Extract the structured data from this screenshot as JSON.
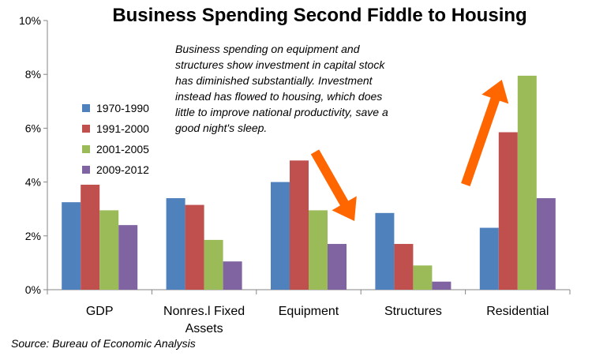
{
  "chart_data": {
    "type": "bar",
    "title": "Business Spending Second Fiddle to Housing",
    "annotation": "Business spending on equipment and\nstructures show investment in  capital stock\nhas diminished substantially. Investment\ninstead has flowed to housing, which does\nlittle to improve national productivity, save a\ngood night's sleep.",
    "source": "Source: Bureau of Economic Analysis",
    "categories": [
      "GDP",
      "Nonres.l Fixed\nAssets",
      "Equipment",
      "Structures",
      "Residential"
    ],
    "series": [
      {
        "name": "1970-1990",
        "color": "#4f81bd",
        "values": [
          3.25,
          3.4,
          4.0,
          2.85,
          2.3
        ]
      },
      {
        "name": "1991-2000",
        "color": "#c0504d",
        "values": [
          3.9,
          3.15,
          4.8,
          1.7,
          5.85
        ]
      },
      {
        "name": "2001-2005",
        "color": "#9bbb59",
        "values": [
          2.95,
          1.85,
          2.95,
          0.9,
          7.95
        ]
      },
      {
        "name": "2009-2012",
        "color": "#8064a2",
        "values": [
          2.4,
          1.05,
          1.7,
          0.3,
          3.4
        ]
      }
    ],
    "ylim": [
      0,
      10
    ],
    "yticks": [
      "0%",
      "2%",
      "4%",
      "6%",
      "8%",
      "10%"
    ],
    "ytick_values": [
      0,
      2,
      4,
      6,
      8,
      10
    ],
    "legend_position": "left",
    "grid": false,
    "arrow_color": "#ff6600"
  }
}
